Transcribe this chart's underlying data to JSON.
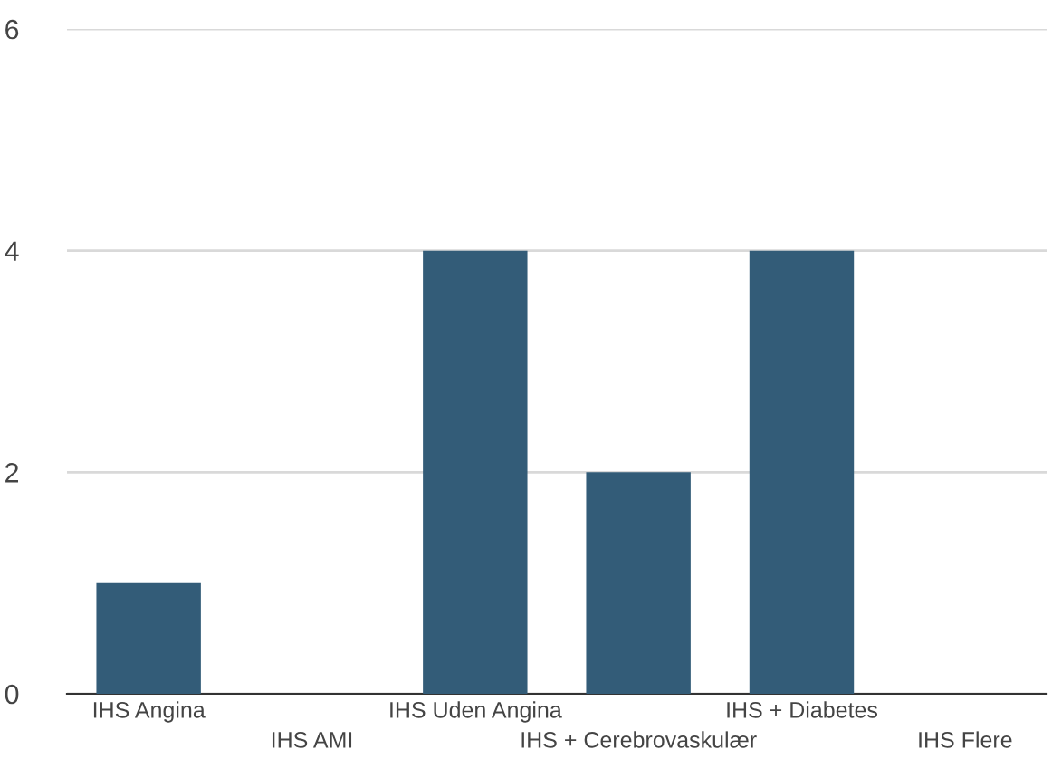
{
  "chart_data": {
    "type": "bar",
    "categories": [
      "IHS Angina",
      "IHS AMI",
      "IHS Uden Angina",
      "IHS + Cerebrovaskulær",
      "IHS + Diabetes",
      "IHS Flere"
    ],
    "values": [
      1,
      0,
      4,
      2,
      4,
      0
    ],
    "color": "#335c78",
    "ylim": [
      0,
      6
    ],
    "yticks": [
      0,
      2,
      4,
      6
    ],
    "grid": "y"
  }
}
